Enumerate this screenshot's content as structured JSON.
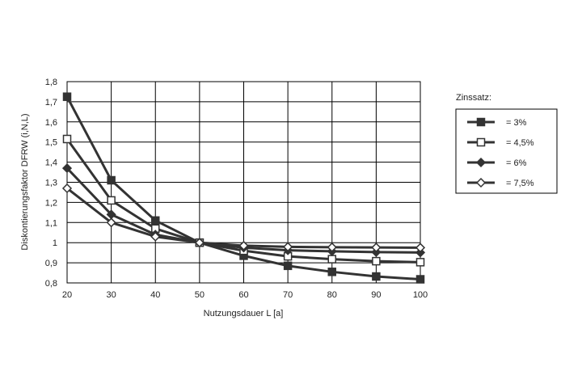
{
  "chart_data": {
    "type": "line",
    "xlabel": "Nutzungsdauer L [a]",
    "ylabel": "Diskontierungsfaktor DFRW (i,N,L)",
    "x": [
      20,
      30,
      40,
      50,
      60,
      70,
      80,
      90,
      100
    ],
    "xticks": [
      "20",
      "30",
      "40",
      "50",
      "60",
      "70",
      "80",
      "90",
      "100"
    ],
    "ylim": [
      0.8,
      1.8
    ],
    "yticks": [
      "0,8",
      "0,9",
      "1",
      "1,1",
      "1,2",
      "1,3",
      "1,4",
      "1,5",
      "1,6",
      "1,7",
      "1,8"
    ],
    "ytick_values": [
      0.8,
      0.9,
      1.0,
      1.1,
      1.2,
      1.3,
      1.4,
      1.5,
      1.6,
      1.7,
      1.8
    ],
    "grid": true,
    "legend_title": "Zinssatz:",
    "legend_position": "right",
    "series": [
      {
        "name": "=  3%",
        "marker": "filled-square",
        "color": "#333333",
        "values": [
          1.725,
          1.31,
          1.11,
          1.0,
          0.935,
          0.885,
          0.855,
          0.832,
          0.818
        ]
      },
      {
        "name": "=  4,5%",
        "marker": "open-square",
        "color": "#333333",
        "values": [
          1.515,
          1.21,
          1.07,
          1.0,
          0.96,
          0.932,
          0.918,
          0.908,
          0.903
        ]
      },
      {
        "name": "=  6%",
        "marker": "filled-diamond",
        "color": "#333333",
        "values": [
          1.37,
          1.14,
          1.04,
          1.0,
          0.975,
          0.962,
          0.957,
          0.953,
          0.951
        ]
      },
      {
        "name": "=  7,5%",
        "marker": "open-diamond",
        "color": "#333333",
        "values": [
          1.27,
          1.1,
          1.03,
          1.0,
          0.985,
          0.979,
          0.977,
          0.976,
          0.975
        ]
      }
    ]
  }
}
